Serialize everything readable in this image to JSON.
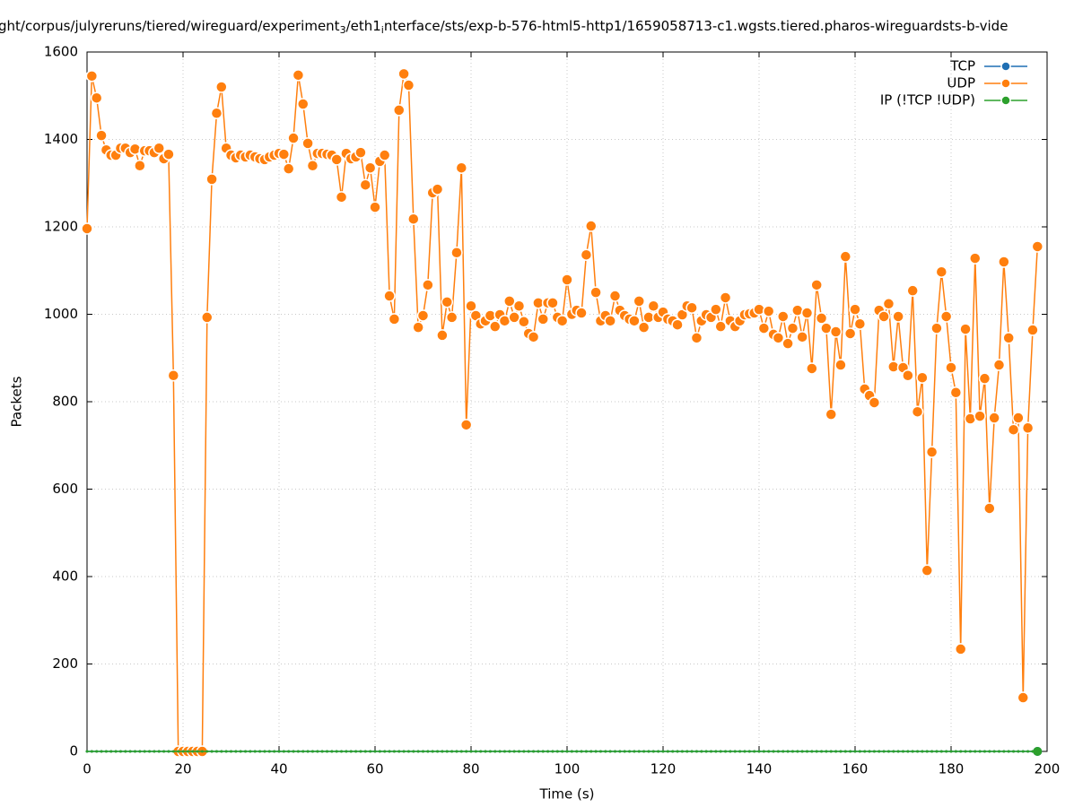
{
  "chart_data": {
    "type": "line",
    "title_parts": [
      "ght/corpus/julyreruns/tiered/wireguard/experiment",
      "3",
      "/eth1",
      "i",
      "nterface/sts/exp-b-576-html5-http1/1659058713-c1.wgsts.tiered.pharos-wireguardsts-b-vide"
    ],
    "x_label": "Time (s)",
    "y_label": "Packets",
    "xlim": [
      0,
      200
    ],
    "xticks": [
      0,
      20,
      40,
      60,
      80,
      100,
      120,
      140,
      160,
      180,
      200
    ],
    "ylim": [
      0,
      1600
    ],
    "yticks": [
      0,
      200,
      400,
      600,
      800,
      1000,
      1200,
      1400,
      1600
    ],
    "grid": true,
    "legend": "top-right",
    "x": [
      0,
      1,
      2,
      3,
      4,
      5,
      6,
      7,
      8,
      9,
      10,
      11,
      12,
      13,
      14,
      15,
      16,
      17,
      18,
      19,
      20,
      21,
      22,
      23,
      24,
      25,
      26,
      27,
      28,
      29,
      30,
      31,
      32,
      33,
      34,
      35,
      36,
      37,
      38,
      39,
      40,
      41,
      42,
      43,
      44,
      45,
      46,
      47,
      48,
      49,
      50,
      51,
      52,
      53,
      54,
      55,
      56,
      57,
      58,
      59,
      60,
      61,
      62,
      63,
      64,
      65,
      66,
      67,
      68,
      69,
      70,
      71,
      72,
      73,
      74,
      75,
      76,
      77,
      78,
      79,
      80,
      81,
      82,
      83,
      84,
      85,
      86,
      87,
      88,
      89,
      90,
      91,
      92,
      93,
      94,
      95,
      96,
      97,
      98,
      99,
      100,
      101,
      102,
      103,
      104,
      105,
      106,
      107,
      108,
      109,
      110,
      111,
      112,
      113,
      114,
      115,
      116,
      117,
      118,
      119,
      120,
      121,
      122,
      123,
      124,
      125,
      126,
      127,
      128,
      129,
      130,
      131,
      132,
      133,
      134,
      135,
      136,
      137,
      138,
      139,
      140,
      141,
      142,
      143,
      144,
      145,
      146,
      147,
      148,
      149,
      150,
      151,
      152,
      153,
      154,
      155,
      156,
      157,
      158,
      159,
      160,
      161,
      162,
      163,
      164,
      165,
      166,
      167,
      168,
      169,
      170,
      171,
      172,
      173,
      174,
      175,
      176,
      177,
      178,
      179,
      180,
      181,
      182,
      183,
      184,
      185,
      186,
      187,
      188,
      189,
      190,
      191,
      192,
      193,
      194,
      195,
      196,
      197,
      198
    ],
    "series": [
      {
        "name": "TCP",
        "color": "#1f6fb4",
        "values": [
          0,
          0,
          0,
          0,
          0,
          0,
          0,
          0,
          0,
          0,
          0,
          0,
          0,
          0,
          0,
          0,
          0,
          0,
          0,
          0,
          0,
          0,
          0,
          0,
          0,
          0,
          0,
          0,
          0,
          0,
          0,
          0,
          0,
          0,
          0,
          0,
          0,
          0,
          0,
          0,
          0,
          0,
          0,
          0,
          0,
          0,
          0,
          0,
          0,
          0,
          0,
          0,
          0,
          0,
          0,
          0,
          0,
          0,
          0,
          0,
          0,
          0,
          0,
          0,
          0,
          0,
          0,
          0,
          0,
          0,
          0,
          0,
          0,
          0,
          0,
          0,
          0,
          0,
          0,
          0,
          0,
          0,
          0,
          0,
          0,
          0,
          0,
          0,
          0,
          0,
          0,
          0,
          0,
          0,
          0,
          0,
          0,
          0,
          0,
          0,
          0,
          0,
          0,
          0,
          0,
          0,
          0,
          0,
          0,
          0,
          0,
          0,
          0,
          0,
          0,
          0,
          0,
          0,
          0,
          0,
          0,
          0,
          0,
          0,
          0,
          0,
          0,
          0,
          0,
          0,
          0,
          0,
          0,
          0,
          0,
          0,
          0,
          0,
          0,
          0,
          0,
          0,
          0,
          0,
          0,
          0,
          0,
          0,
          0,
          0,
          0,
          0,
          0,
          0,
          0,
          0,
          0,
          0,
          0,
          0,
          0,
          0,
          0,
          0,
          0,
          0,
          0,
          0,
          0,
          0,
          0,
          0,
          0,
          0,
          0,
          0,
          0,
          0,
          0,
          0,
          0,
          0,
          0,
          0,
          0,
          0,
          0,
          0,
          0,
          0,
          0,
          0,
          0,
          0,
          0,
          0,
          0,
          0,
          0
        ]
      },
      {
        "name": "UDP",
        "color": "#ff7f0e",
        "values": [
          1196,
          1545,
          1495,
          1409,
          1376,
          1364,
          1364,
          1380,
          1380,
          1370,
          1378,
          1340,
          1374,
          1374,
          1370,
          1380,
          1356,
          1366,
          860,
          0,
          0,
          0,
          0,
          0,
          0,
          993,
          1309,
          1460,
          1520,
          1380,
          1364,
          1358,
          1364,
          1360,
          1364,
          1360,
          1356,
          1354,
          1360,
          1364,
          1368,
          1366,
          1333,
          1403,
          1547,
          1481,
          1391,
          1340,
          1368,
          1368,
          1366,
          1364,
          1354,
          1268,
          1368,
          1356,
          1360,
          1370,
          1296,
          1335,
          1245,
          1350,
          1364,
          1042,
          989,
          1467,
          1550,
          1524,
          1218,
          970,
          997,
          1067,
          1278,
          1286,
          952,
          1028,
          993,
          1141,
          1335,
          747,
          1019,
          997,
          978,
          985,
          997,
          972,
          999,
          985,
          1030,
          993,
          1019,
          983,
          956,
          948,
          1026,
          989,
          1026,
          1026,
          993,
          985,
          1079,
          1000,
          1009,
          1003,
          1136,
          1202,
          1050,
          985,
          997,
          985,
          1042,
          1009,
          997,
          989,
          985,
          1030,
          970,
          993,
          1019,
          993,
          1005,
          989,
          985,
          976,
          999,
          1019,
          1015,
          946,
          985,
          999,
          993,
          1011,
          972,
          1038,
          985,
          972,
          985,
          999,
          1001,
          1003,
          1011,
          968,
          1007,
          954,
          946,
          995,
          933,
          968,
          1009,
          948,
          1003,
          876,
          1067,
          991,
          968,
          771,
          960,
          884,
          1132,
          956,
          1011,
          978,
          829,
          814,
          798,
          1009,
          995,
          1024,
          880,
          995,
          878,
          860,
          1054,
          777,
          855,
          414,
          685,
          968,
          1097,
          995,
          878,
          821,
          234,
          966,
          761,
          1128,
          767,
          853,
          556,
          763,
          884,
          1120,
          946,
          736,
          763,
          123,
          740,
          964,
          1155
        ]
      },
      {
        "name": "IP (!TCP  !UDP)",
        "color": "#2ca02c",
        "values": [
          0,
          0,
          0,
          0,
          0,
          0,
          0,
          0,
          0,
          0,
          0,
          0,
          0,
          0,
          0,
          0,
          0,
          0,
          0,
          0,
          0,
          0,
          0,
          0,
          0,
          0,
          0,
          0,
          0,
          0,
          0,
          0,
          0,
          0,
          0,
          0,
          0,
          0,
          0,
          0,
          0,
          0,
          0,
          0,
          0,
          0,
          0,
          0,
          0,
          0,
          0,
          0,
          0,
          0,
          0,
          0,
          0,
          0,
          0,
          0,
          0,
          0,
          0,
          0,
          0,
          0,
          0,
          0,
          0,
          0,
          0,
          0,
          0,
          0,
          0,
          0,
          0,
          0,
          0,
          0,
          0,
          0,
          0,
          0,
          0,
          0,
          0,
          0,
          0,
          0,
          0,
          0,
          0,
          0,
          0,
          0,
          0,
          0,
          0,
          0,
          0,
          0,
          0,
          0,
          0,
          0,
          0,
          0,
          0,
          0,
          0,
          0,
          0,
          0,
          0,
          0,
          0,
          0,
          0,
          0,
          0,
          0,
          0,
          0,
          0,
          0,
          0,
          0,
          0,
          0,
          0,
          0,
          0,
          0,
          0,
          0,
          0,
          0,
          0,
          0,
          0,
          0,
          0,
          0,
          0,
          0,
          0,
          0,
          0,
          0,
          0,
          0,
          0,
          0,
          0,
          0,
          0,
          0,
          0,
          0,
          0,
          0,
          0,
          0,
          0,
          0,
          0,
          0,
          0,
          0,
          0,
          0,
          0,
          0,
          0,
          0,
          0,
          0,
          0,
          0,
          0,
          0,
          0,
          0,
          0,
          0,
          0,
          0,
          0,
          0,
          0,
          0,
          0,
          0,
          0,
          0,
          0,
          0,
          0
        ]
      }
    ]
  }
}
